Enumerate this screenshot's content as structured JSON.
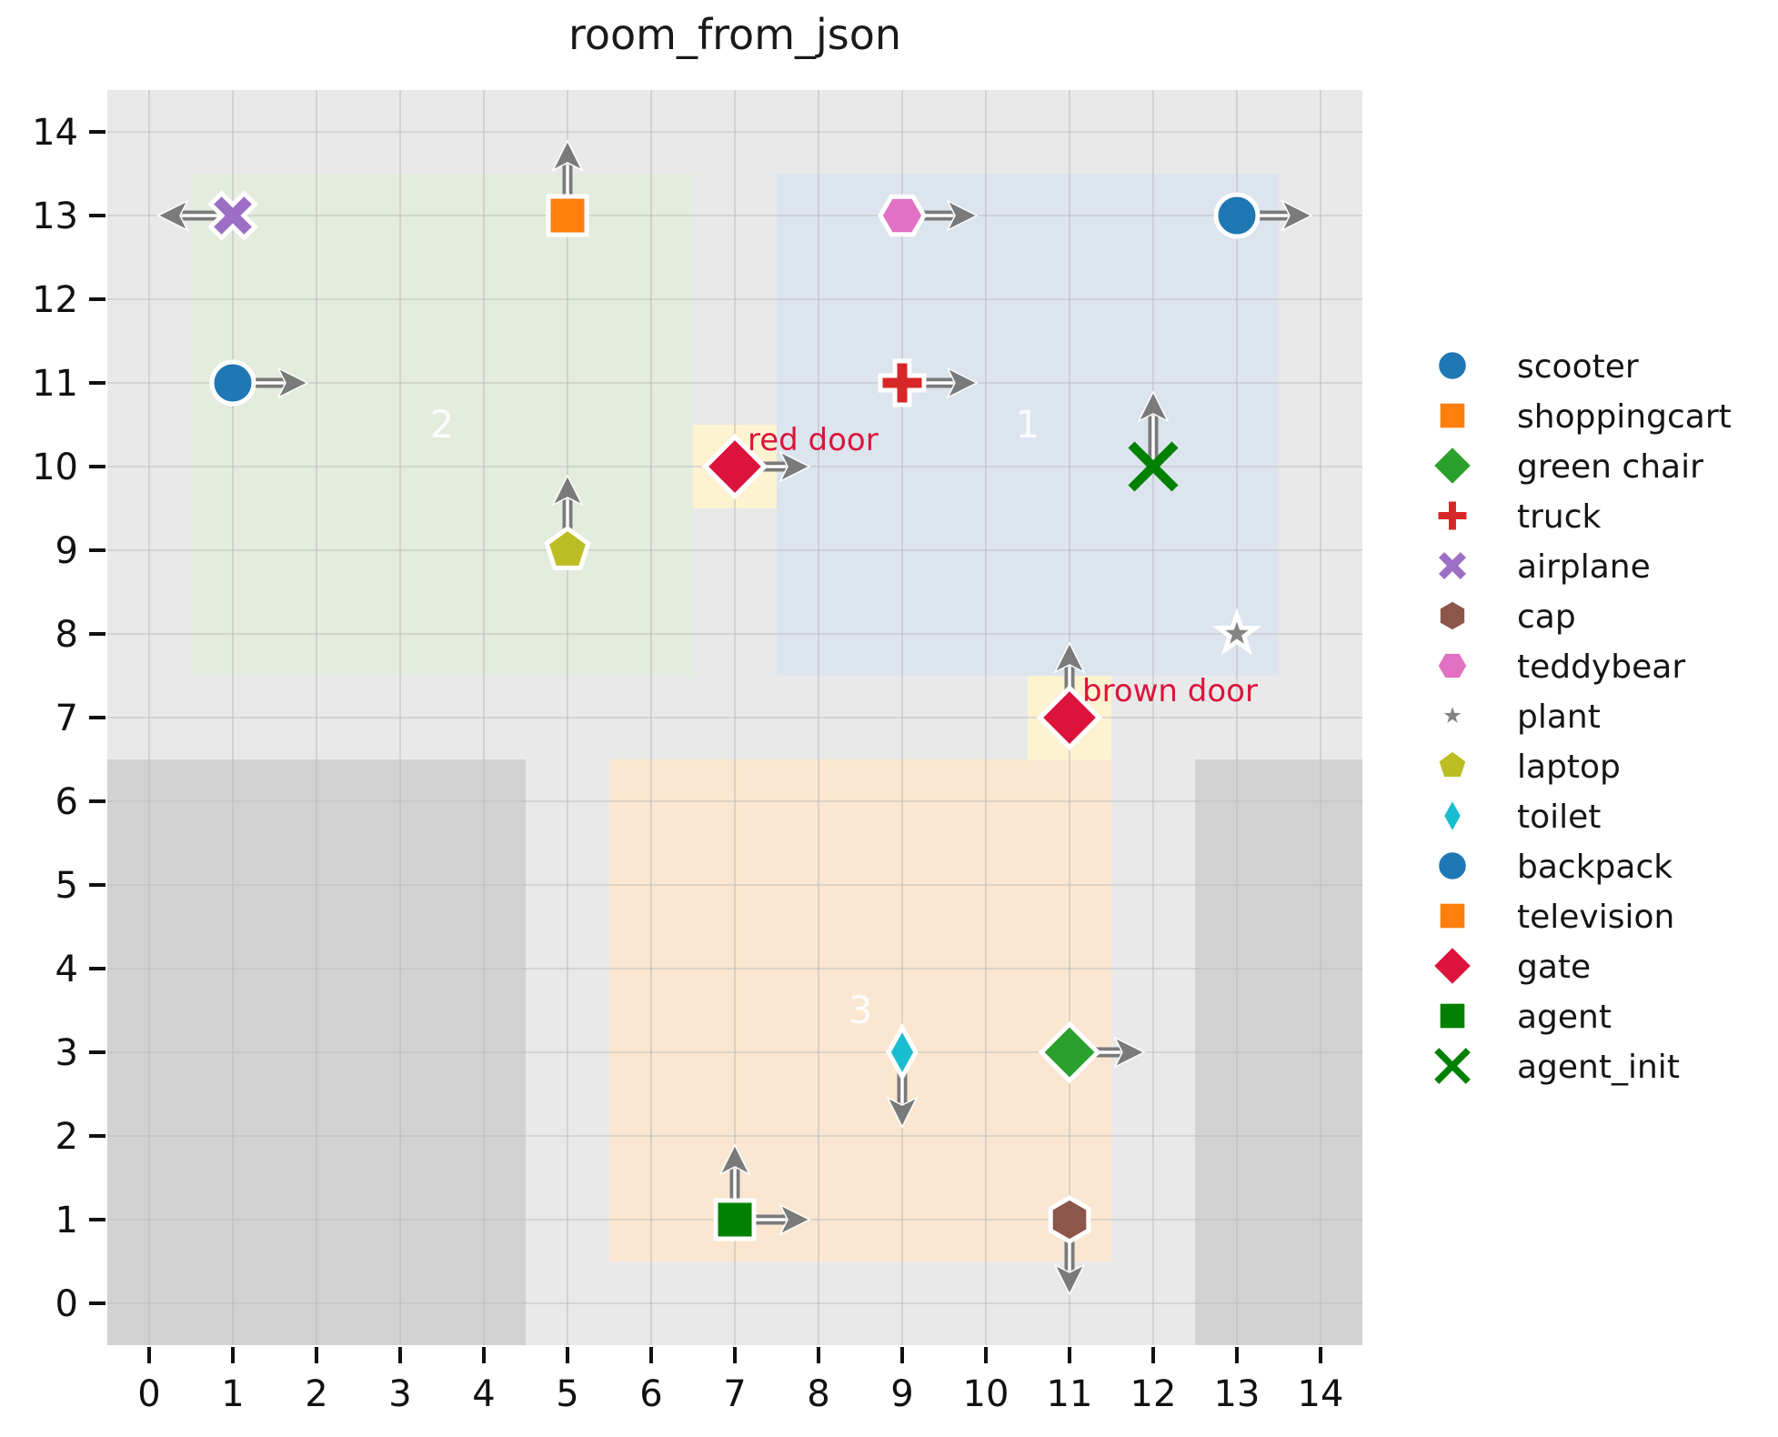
{
  "chart_data": {
    "type": "scatter",
    "title": "room_from_json",
    "xlabel": "",
    "ylabel": "",
    "xlim": [
      -0.5,
      14.5
    ],
    "ylim": [
      -0.5,
      14.5
    ],
    "x_ticks": [
      0,
      1,
      2,
      3,
      4,
      5,
      6,
      7,
      8,
      9,
      10,
      11,
      12,
      13,
      14
    ],
    "y_ticks": [
      0,
      1,
      2,
      3,
      4,
      5,
      6,
      7,
      8,
      9,
      10,
      11,
      12,
      13,
      14
    ],
    "grid": true,
    "legend_position": "right",
    "colors": {
      "plot_background": "#e9e9e9",
      "gridline": "#bdbdbd",
      "blocked_area": "#d2d2d2",
      "room_1": "#dce5ee",
      "room_2": "#e3ecdd",
      "room_3": "#fbe7d1",
      "door_highlight": "#fdf3d1",
      "door_label": "#dc143c",
      "arrow": "#7a7a7a",
      "room_label": "#ffffff",
      "tick_label": "#111111"
    },
    "rooms": [
      {
        "id": "1",
        "x0": 7.5,
        "y0": 7.5,
        "x1": 13.5,
        "y1": 13.5,
        "color": "#dce5ee",
        "label_x": 10.5,
        "label_y": 10.5
      },
      {
        "id": "2",
        "x0": 0.5,
        "y0": 7.5,
        "x1": 6.5,
        "y1": 13.5,
        "color": "#e3ecdd",
        "label_x": 3.5,
        "label_y": 10.5
      },
      {
        "id": "3",
        "x0": 5.5,
        "y0": 0.5,
        "x1": 11.5,
        "y1": 6.5,
        "color": "#fbe7d1",
        "label_x": 8.5,
        "label_y": 3.5
      }
    ],
    "blocked_areas": [
      {
        "x0": -0.5,
        "y0": -0.5,
        "x1": 4.5,
        "y1": 6.5
      },
      {
        "x0": 12.5,
        "y0": -0.5,
        "x1": 14.5,
        "y1": 6.5
      }
    ],
    "doors": [
      {
        "label": "red door",
        "x": 7,
        "y": 10,
        "marker": "diamond",
        "color": "#dc143c",
        "headings": [
          "right"
        ]
      },
      {
        "label": "brown door",
        "x": 11,
        "y": 7,
        "marker": "diamond",
        "color": "#dc143c",
        "headings": [
          "up"
        ]
      }
    ],
    "objects": [
      {
        "name": "scooter",
        "marker": "circle",
        "color": "#1f77b4",
        "x": 1,
        "y": 11,
        "headings": [
          "right"
        ]
      },
      {
        "name": "shoppingcart",
        "marker": "square",
        "color": "#ff7f0e",
        "x": 5,
        "y": 13,
        "headings": [
          "up"
        ]
      },
      {
        "name": "green chair",
        "marker": "diamond",
        "color": "#2ca02c",
        "x": 11,
        "y": 3,
        "headings": [
          "right"
        ]
      },
      {
        "name": "truck",
        "marker": "plus",
        "color": "#d62728",
        "x": 9,
        "y": 11,
        "headings": [
          "right"
        ]
      },
      {
        "name": "airplane",
        "marker": "x-filled",
        "color": "#9d6fc4",
        "x": 1,
        "y": 13,
        "headings": [
          "left"
        ]
      },
      {
        "name": "cap",
        "marker": "hexagon-pointy",
        "color": "#8c564b",
        "x": 11,
        "y": 1,
        "headings": [
          "down"
        ]
      },
      {
        "name": "teddybear",
        "marker": "hexagon-flat",
        "color": "#e071c3",
        "x": 9,
        "y": 13,
        "headings": [
          "right"
        ]
      },
      {
        "name": "plant",
        "marker": "star",
        "color": "#848484",
        "x": 13,
        "y": 8,
        "headings": []
      },
      {
        "name": "laptop",
        "marker": "pentagon",
        "color": "#bcbd22",
        "x": 5,
        "y": 9,
        "headings": [
          "up"
        ]
      },
      {
        "name": "toilet",
        "marker": "thin-diamond",
        "color": "#18becf",
        "x": 9,
        "y": 3,
        "headings": [
          "down"
        ]
      },
      {
        "name": "backpack",
        "marker": "circle",
        "color": "#1f77b4",
        "x": 13,
        "y": 13,
        "headings": [
          "right"
        ]
      },
      {
        "name": "television",
        "marker": "square",
        "color": "#ff7f0e",
        "x": 5,
        "y": 13,
        "headings": [
          "up"
        ]
      },
      {
        "name": "agent",
        "marker": "square",
        "color": "#008000",
        "x": 7,
        "y": 1,
        "headings": [
          "up",
          "right"
        ]
      },
      {
        "name": "agent_init",
        "marker": "x-thin",
        "color": "#008000",
        "x": 12,
        "y": 10,
        "headings": [
          "up"
        ]
      }
    ],
    "legend": [
      {
        "label": "scooter",
        "marker": "circle",
        "color": "#1f77b4"
      },
      {
        "label": "shoppingcart",
        "marker": "square",
        "color": "#ff7f0e"
      },
      {
        "label": "green chair",
        "marker": "diamond",
        "color": "#2ca02c"
      },
      {
        "label": "truck",
        "marker": "plus",
        "color": "#d62728"
      },
      {
        "label": "airplane",
        "marker": "x-filled",
        "color": "#9d6fc4"
      },
      {
        "label": "cap",
        "marker": "hexagon-pointy",
        "color": "#8c564b"
      },
      {
        "label": "teddybear",
        "marker": "hexagon-flat",
        "color": "#e071c3"
      },
      {
        "label": "plant",
        "marker": "star",
        "color": "#848484"
      },
      {
        "label": "laptop",
        "marker": "pentagon",
        "color": "#bcbd22"
      },
      {
        "label": "toilet",
        "marker": "thin-diamond",
        "color": "#18becf"
      },
      {
        "label": "backpack",
        "marker": "circle",
        "color": "#1f77b4"
      },
      {
        "label": "television",
        "marker": "square",
        "color": "#ff7f0e"
      },
      {
        "label": "gate",
        "marker": "diamond",
        "color": "#dc143c"
      },
      {
        "label": "agent",
        "marker": "square",
        "color": "#008000"
      },
      {
        "label": "agent_init",
        "marker": "x-thin",
        "color": "#008000"
      }
    ]
  }
}
